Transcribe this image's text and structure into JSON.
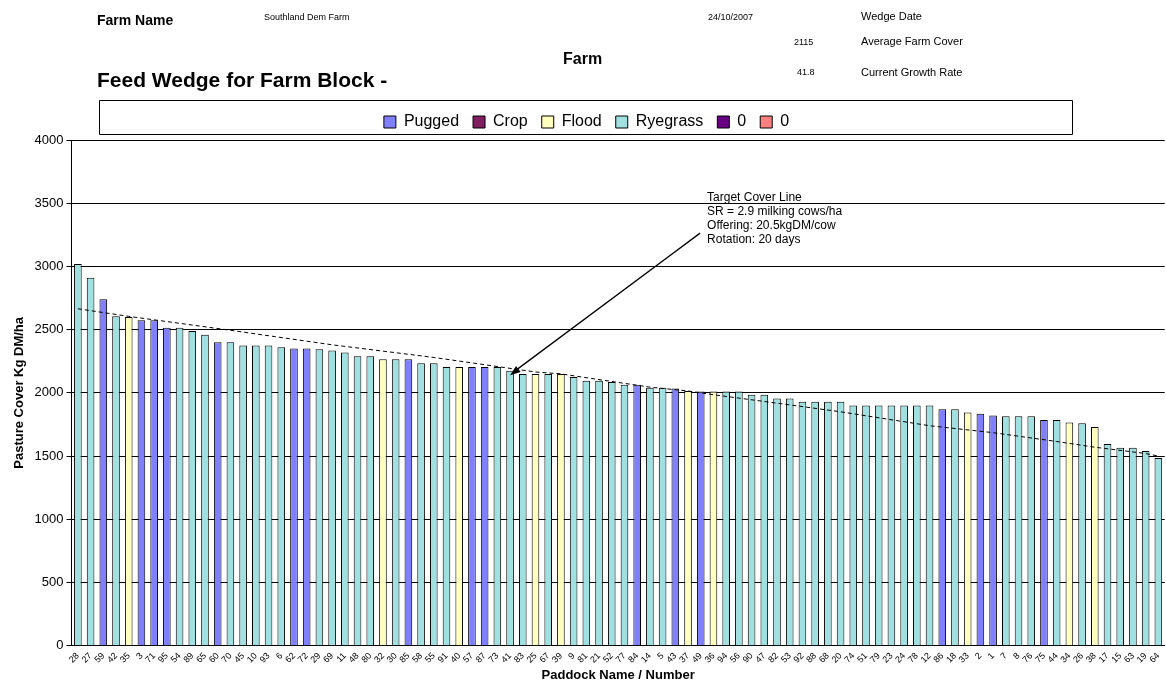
{
  "chart_data": {
    "type": "bar",
    "title": "Feed Wedge for Farm Block -",
    "annotations": [
      "Farm Name",
      "Southland Dem Farm",
      "24/10/2007",
      "Wedge Date",
      "Farm",
      "2115",
      "Average Farm Cover",
      "41.8",
      "Current Growth Rate",
      {
        "text": "Target Cover Line\nSR = 2.9 milking cows/ha\nOffering: 20.5kgDM/cow\nRotation: 20 days",
        "x": "41",
        "y": 2140
      }
    ],
    "xlabel": "Paddock Name / Number",
    "ylabel": "Pasture Cover Kg DM/ha",
    "categories": [
      "28",
      "27",
      "59",
      "42",
      "35",
      "3",
      "71",
      "95",
      "54",
      "89",
      "65",
      "60",
      "70",
      "45",
      "10",
      "93",
      "6",
      "62",
      "72",
      "29",
      "69",
      "11",
      "48",
      "80",
      "32",
      "30",
      "85",
      "58",
      "55",
      "91",
      "40",
      "57",
      "87",
      "73",
      "41",
      "83",
      "25",
      "67",
      "39",
      "9",
      "81",
      "21",
      "52",
      "77",
      "84",
      "14",
      "5",
      "43",
      "37",
      "49",
      "36",
      "94",
      "56",
      "90",
      "47",
      "82",
      "53",
      "92",
      "88",
      "68",
      "20",
      "74",
      "51",
      "79",
      "23",
      "24",
      "78",
      "12",
      "86",
      "18",
      "33",
      "2",
      "1",
      "7",
      "8",
      "76",
      "75",
      "44",
      "34",
      "26",
      "38",
      "17",
      "15",
      "63",
      "19",
      "64"
    ],
    "stacked": true,
    "ylim": [
      0,
      4000
    ],
    "yticks": [
      0,
      500,
      1000,
      1500,
      2000,
      2500,
      3000,
      3500,
      4000
    ],
    "grid": "y",
    "legend": "top",
    "series": [
      {
        "name": "Pugged",
        "color": "#8080ff",
        "values": [
          null,
          null,
          2740,
          null,
          null,
          2575,
          2575,
          2515,
          null,
          null,
          null,
          2400,
          null,
          null,
          null,
          null,
          null,
          2350,
          2350,
          null,
          null,
          null,
          null,
          null,
          null,
          null,
          2265,
          null,
          null,
          null,
          null,
          2205,
          2205,
          null,
          null,
          null,
          null,
          null,
          null,
          null,
          null,
          null,
          null,
          null,
          2065,
          null,
          null,
          2035,
          null,
          2010,
          null,
          null,
          null,
          null,
          null,
          null,
          null,
          null,
          null,
          null,
          null,
          null,
          null,
          null,
          null,
          null,
          null,
          null,
          1870,
          null,
          null,
          1835,
          1820,
          null,
          null,
          null,
          1785,
          null,
          null,
          null,
          null,
          null,
          null,
          null,
          null,
          null
        ]
      },
      {
        "name": "Crop",
        "color": "#7f1f5f",
        "values": [
          null,
          null,
          null,
          null,
          null,
          null,
          null,
          null,
          null,
          null,
          null,
          null,
          null,
          null,
          null,
          null,
          null,
          null,
          null,
          null,
          null,
          null,
          null,
          null,
          null,
          null,
          null,
          null,
          null,
          null,
          null,
          null,
          null,
          null,
          null,
          null,
          null,
          null,
          null,
          null,
          null,
          null,
          null,
          null,
          null,
          null,
          null,
          null,
          null,
          null,
          null,
          null,
          null,
          null,
          null,
          null,
          null,
          null,
          null,
          null,
          null,
          null,
          null,
          null,
          null,
          null,
          null,
          null,
          null,
          null,
          null,
          null,
          null,
          null,
          null,
          null,
          null,
          null,
          null,
          null,
          null,
          null,
          null,
          null,
          null,
          null
        ]
      },
      {
        "name": "Flood",
        "color": "#ffffc0",
        "values": [
          null,
          null,
          null,
          null,
          2600,
          null,
          null,
          null,
          null,
          null,
          null,
          null,
          null,
          null,
          null,
          null,
          null,
          null,
          null,
          null,
          null,
          null,
          null,
          null,
          2265,
          null,
          null,
          null,
          null,
          null,
          2205,
          null,
          null,
          null,
          null,
          null,
          2150,
          null,
          2150,
          null,
          null,
          null,
          null,
          null,
          null,
          null,
          null,
          null,
          2015,
          null,
          2010,
          null,
          null,
          null,
          null,
          null,
          null,
          null,
          null,
          null,
          null,
          null,
          null,
          null,
          null,
          null,
          null,
          null,
          null,
          null,
          1845,
          null,
          null,
          null,
          null,
          null,
          null,
          null,
          1765,
          null,
          1730,
          null,
          null,
          null,
          null,
          null
        ]
      },
      {
        "name": "Ryegrass",
        "color": "#a0e0e0",
        "values": [
          3020,
          2910,
          null,
          2605,
          null,
          null,
          null,
          null,
          2515,
          2490,
          2460,
          null,
          2400,
          2375,
          2375,
          2375,
          2360,
          null,
          null,
          2345,
          2335,
          2320,
          2290,
          2290,
          null,
          2265,
          null,
          2235,
          2235,
          2205,
          null,
          null,
          null,
          2205,
          2175,
          2150,
          null,
          2150,
          null,
          2125,
          2095,
          2095,
          2085,
          2065,
          null,
          2040,
          2040,
          null,
          null,
          null,
          null,
          2010,
          2010,
          1985,
          1985,
          1955,
          1955,
          1930,
          1930,
          1930,
          1930,
          1900,
          1900,
          1900,
          1900,
          1900,
          1900,
          1900,
          null,
          1870,
          null,
          null,
          null,
          1815,
          1815,
          1815,
          null,
          1785,
          null,
          1760,
          null,
          1595,
          1565,
          1565,
          1540,
          1485
        ]
      },
      {
        "name": "0",
        "color": "#660080",
        "values": [
          null,
          null,
          null,
          null,
          null,
          null,
          null,
          null,
          null,
          null,
          null,
          null,
          null,
          null,
          null,
          null,
          null,
          null,
          null,
          null,
          null,
          null,
          null,
          null,
          null,
          null,
          null,
          null,
          null,
          null,
          null,
          null,
          null,
          null,
          null,
          null,
          null,
          null,
          null,
          null,
          null,
          null,
          null,
          null,
          null,
          null,
          null,
          null,
          null,
          null,
          null,
          null,
          null,
          null,
          null,
          null,
          null,
          null,
          null,
          null,
          null,
          null,
          null,
          null,
          null,
          null,
          null,
          null,
          null,
          null,
          null,
          null,
          null,
          null,
          null,
          null,
          null,
          null,
          null,
          null,
          null,
          null,
          null,
          null,
          null,
          null
        ]
      },
      {
        "name": "0",
        "color": "#ff8080",
        "values": [
          null,
          null,
          null,
          null,
          null,
          null,
          null,
          null,
          null,
          null,
          null,
          null,
          null,
          null,
          null,
          null,
          null,
          null,
          null,
          null,
          null,
          null,
          null,
          null,
          null,
          null,
          null,
          null,
          null,
          null,
          null,
          null,
          null,
          null,
          null,
          null,
          null,
          null,
          null,
          null,
          null,
          null,
          null,
          null,
          null,
          null,
          null,
          null,
          null,
          null,
          null,
          null,
          null,
          null,
          null,
          null,
          null,
          null,
          null,
          null,
          null,
          null,
          null,
          null,
          null,
          null,
          null,
          null,
          null,
          null,
          null,
          null,
          null,
          null,
          null,
          null,
          null,
          null,
          null,
          null,
          null,
          null,
          null,
          null,
          null,
          null
        ]
      },
      {
        "type": "line",
        "color": "#000000",
        "line_style": "dashed",
        "marker": "none",
        "x": [
          "28",
          "35",
          "70",
          "69",
          "55",
          "25",
          "39",
          "52",
          "14",
          "37",
          "36",
          "53",
          "20",
          "12",
          "1",
          "44",
          "38",
          "19",
          "64"
        ],
        "values": [
          2665,
          2605,
          2495,
          2380,
          2280,
          2165,
          2150,
          2090,
          2045,
          2015,
          1985,
          1905,
          1850,
          1740,
          1685,
          1615,
          1570,
          1520,
          1500
        ]
      }
    ]
  }
}
